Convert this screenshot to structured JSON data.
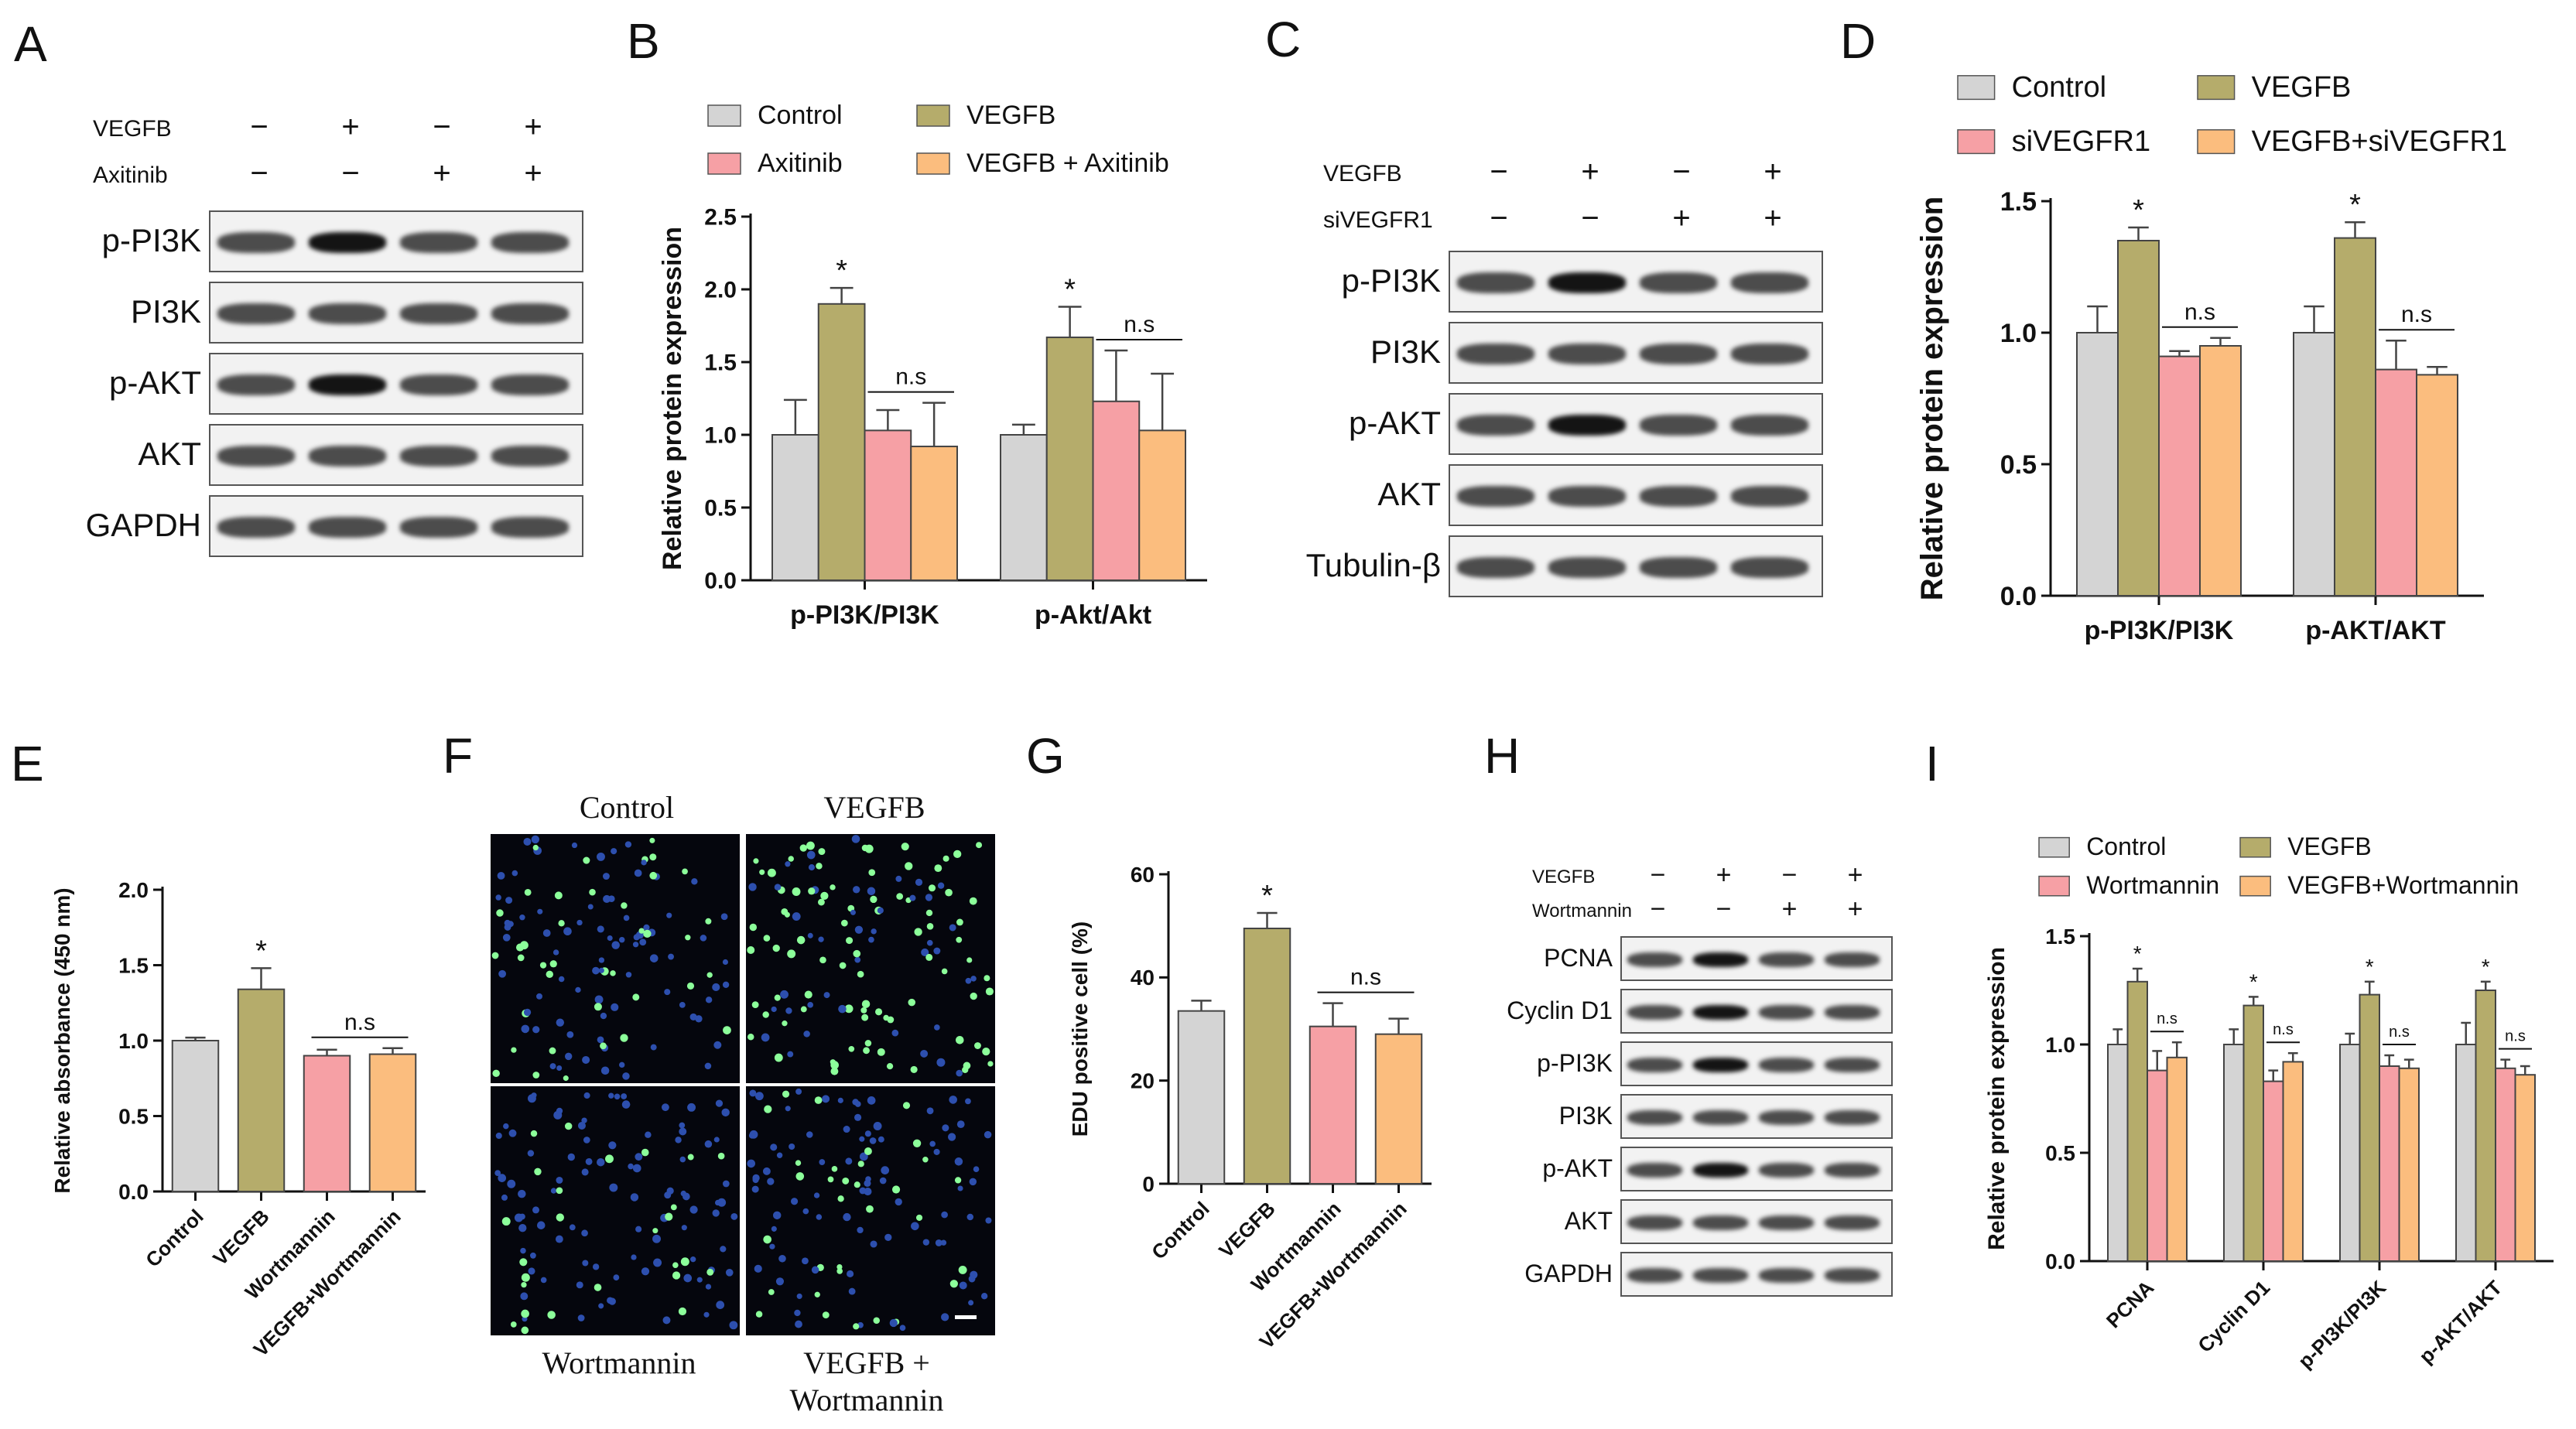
{
  "panel_letters": [
    "A",
    "B",
    "C",
    "D",
    "E",
    "F",
    "G",
    "H",
    "I"
  ],
  "colors": {
    "control": "#d4d4d4",
    "vegfb": "#b5ac6b",
    "inhibitor": "#f6a0a5",
    "combo": "#fbbd7e",
    "axis": "#111111"
  },
  "blots": {
    "A": {
      "conditions": [
        {
          "name": "VEGFB",
          "signs": [
            "−",
            "+",
            "−",
            "+"
          ]
        },
        {
          "name": "Axitinib",
          "signs": [
            "−",
            "−",
            "+",
            "+"
          ]
        }
      ],
      "rows": [
        "p-PI3K",
        "PI3K",
        "p-AKT",
        "AKT",
        "GAPDH"
      ]
    },
    "C": {
      "conditions": [
        {
          "name": "VEGFB",
          "signs": [
            "−",
            "+",
            "−",
            "+"
          ]
        },
        {
          "name": "siVEGFR1",
          "signs": [
            "−",
            "−",
            "+",
            "+"
          ]
        }
      ],
      "rows": [
        "p-PI3K",
        "PI3K",
        "p-AKT",
        "AKT",
        "Tubulin-β"
      ]
    },
    "H": {
      "conditions": [
        {
          "name": "VEGFB",
          "signs": [
            "−",
            "+",
            "−",
            "+"
          ]
        },
        {
          "name": "Wortmannin",
          "signs": [
            "−",
            "−",
            "+",
            "+"
          ]
        }
      ],
      "rows": [
        "PCNA",
        "Cyclin D1",
        "p-PI3K",
        "PI3K",
        "p-AKT",
        "AKT",
        "GAPDH"
      ]
    }
  },
  "micrographs": {
    "labels": [
      "Control",
      "VEGFB",
      "Wortmannin",
      "VEGFB +\nWortmannin"
    ]
  },
  "chart_data": [
    {
      "panel": "B",
      "type": "bar",
      "categories": [
        "p-PI3K/PI3K",
        "p-Akt/Akt"
      ],
      "series": [
        {
          "name": "Control",
          "values": [
            1.0,
            1.0
          ],
          "err": [
            0.24,
            0.07
          ]
        },
        {
          "name": "VEGFB",
          "values": [
            1.9,
            1.67
          ],
          "err": [
            0.11,
            0.21
          ]
        },
        {
          "name": "Axitinib",
          "values": [
            1.03,
            1.23
          ],
          "err": [
            0.14,
            0.35
          ]
        },
        {
          "name": "VEGFB + Axitinib",
          "values": [
            0.92,
            1.03
          ],
          "err": [
            0.3,
            0.39
          ]
        }
      ],
      "ylabel": "Relative protein expression",
      "ylim": [
        0,
        2.5
      ],
      "yticks": [
        "0.0",
        "0.5",
        "1.0",
        "1.5",
        "2.0",
        "2.5"
      ],
      "annotations": [
        "*",
        "*",
        "n.s",
        "n.s"
      ],
      "legend": "top"
    },
    {
      "panel": "D",
      "type": "bar",
      "categories": [
        "p-PI3K/PI3K",
        "p-AKT/AKT"
      ],
      "series": [
        {
          "name": "Control",
          "values": [
            1.0,
            1.0
          ],
          "err": [
            0.1,
            0.1
          ]
        },
        {
          "name": "VEGFB",
          "values": [
            1.35,
            1.36
          ],
          "err": [
            0.05,
            0.06
          ]
        },
        {
          "name": "siVEGFR1",
          "values": [
            0.91,
            0.86
          ],
          "err": [
            0.02,
            0.11
          ]
        },
        {
          "name": "VEGFB+siVEGFR1",
          "values": [
            0.95,
            0.84
          ],
          "err": [
            0.03,
            0.03
          ]
        }
      ],
      "ylabel": "Relative protein expression",
      "ylim": [
        0,
        1.5
      ],
      "yticks": [
        "0.0",
        "0.5",
        "1.0",
        "1.5"
      ],
      "annotations": [
        "*",
        "*",
        "n.s",
        "n.s"
      ],
      "legend": "top"
    },
    {
      "panel": "E",
      "type": "bar",
      "categories": [
        "Control",
        "VEGFB",
        "Wortmannin",
        "VEGFB+Wortmannin"
      ],
      "values": [
        1.0,
        1.34,
        0.9,
        0.91
      ],
      "err": [
        0.02,
        0.14,
        0.04,
        0.04
      ],
      "ylabel": "Relative absorbance (450 nm)",
      "ylim": [
        0,
        2.0
      ],
      "yticks": [
        "0.0",
        "0.5",
        "1.0",
        "1.5",
        "2.0"
      ],
      "annotations": [
        "*",
        "n.s"
      ]
    },
    {
      "panel": "G",
      "type": "bar",
      "categories": [
        "Control",
        "VEGFB",
        "Wortmannin",
        "VEGFB+Wortmannin"
      ],
      "values": [
        33.5,
        49.5,
        30.5,
        29.0
      ],
      "err": [
        2.0,
        3.0,
        4.5,
        3.0
      ],
      "ylabel": "EDU positive cell (%)",
      "ylim": [
        0,
        60
      ],
      "yticks": [
        "0",
        "20",
        "40",
        "60"
      ],
      "annotations": [
        "*",
        "n.s"
      ]
    },
    {
      "panel": "I",
      "type": "bar",
      "categories": [
        "PCNA",
        "Cyclin D1",
        "p-PI3K/PI3K",
        "p-AKT/AKT"
      ],
      "series": [
        {
          "name": "Control",
          "values": [
            1.0,
            1.0,
            1.0,
            1.0
          ],
          "err": [
            0.07,
            0.07,
            0.05,
            0.1
          ]
        },
        {
          "name": "VEGFB",
          "values": [
            1.29,
            1.18,
            1.23,
            1.25
          ],
          "err": [
            0.06,
            0.04,
            0.06,
            0.04
          ]
        },
        {
          "name": "Wortmannin",
          "values": [
            0.88,
            0.83,
            0.9,
            0.89
          ],
          "err": [
            0.09,
            0.05,
            0.05,
            0.04
          ]
        },
        {
          "name": "VEGFB+Wortmannin",
          "values": [
            0.94,
            0.92,
            0.89,
            0.86
          ],
          "err": [
            0.07,
            0.04,
            0.04,
            0.04
          ]
        }
      ],
      "ylabel": "Relative protein expression",
      "ylim": [
        0,
        1.5
      ],
      "yticks": [
        "0.0",
        "0.5",
        "1.0",
        "1.5"
      ],
      "annotations": [
        "*",
        "*",
        "*",
        "*",
        "n.s",
        "n.s",
        "n.s",
        "n.s"
      ],
      "legend": "top"
    }
  ]
}
